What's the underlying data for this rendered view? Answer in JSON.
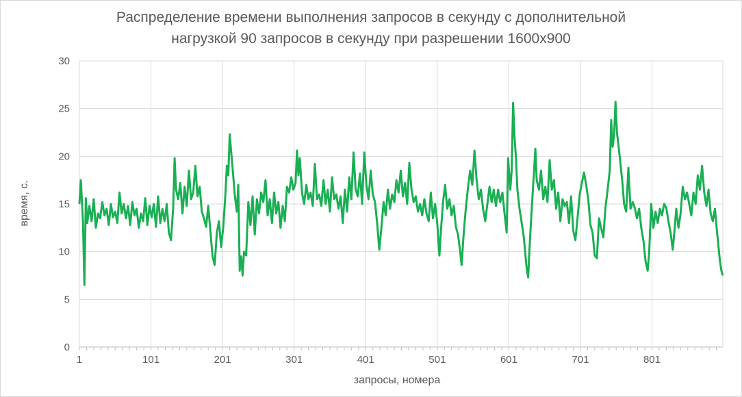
{
  "chart_data": {
    "type": "line",
    "title_lines": [
      "Распределение времени выполнения запросов в секунду с дополнительной",
      "нагрузкой 90 запросов в секунду при разрешении 1600x900"
    ],
    "xlabel": "запросы, номера",
    "ylabel": "время, с.",
    "ylim": [
      0,
      30
    ],
    "yticks": [
      0,
      5,
      10,
      15,
      20,
      25,
      30
    ],
    "xlim": [
      1,
      900
    ],
    "xticks": [
      1,
      101,
      201,
      301,
      401,
      501,
      601,
      701,
      801
    ],
    "grid": true,
    "legend": "none",
    "series": [
      {
        "color": "#1aaf54",
        "points": [
          [
            1,
            15.0
          ],
          [
            3,
            17.5
          ],
          [
            6,
            13.2
          ],
          [
            8,
            6.5
          ],
          [
            10,
            15.6
          ],
          [
            12,
            13.0
          ],
          [
            15,
            14.8
          ],
          [
            18,
            13.2
          ],
          [
            21,
            15.5
          ],
          [
            24,
            12.5
          ],
          [
            27,
            14.0
          ],
          [
            30,
            13.5
          ],
          [
            33,
            15.2
          ],
          [
            36,
            13.8
          ],
          [
            39,
            14.5
          ],
          [
            42,
            12.8
          ],
          [
            45,
            15.0
          ],
          [
            48,
            13.6
          ],
          [
            51,
            14.2
          ],
          [
            54,
            13.0
          ],
          [
            57,
            16.2
          ],
          [
            60,
            14.0
          ],
          [
            63,
            15.0
          ],
          [
            66,
            13.5
          ],
          [
            69,
            14.8
          ],
          [
            72,
            12.8
          ],
          [
            75,
            15.2
          ],
          [
            78,
            13.8
          ],
          [
            81,
            14.5
          ],
          [
            84,
            12.5
          ],
          [
            87,
            14.0
          ],
          [
            90,
            13.2
          ],
          [
            93,
            15.6
          ],
          [
            96,
            12.8
          ],
          [
            99,
            14.8
          ],
          [
            102,
            13.6
          ],
          [
            105,
            15.0
          ],
          [
            108,
            12.6
          ],
          [
            111,
            15.8
          ],
          [
            114,
            13.0
          ],
          [
            117,
            14.5
          ],
          [
            120,
            13.2
          ],
          [
            123,
            15.0
          ],
          [
            126,
            12.0
          ],
          [
            129,
            11.2
          ],
          [
            132,
            14.6
          ],
          [
            134,
            19.8
          ],
          [
            136,
            16.5
          ],
          [
            139,
            15.5
          ],
          [
            142,
            17.2
          ],
          [
            145,
            14.0
          ],
          [
            148,
            16.8
          ],
          [
            151,
            14.8
          ],
          [
            154,
            18.5
          ],
          [
            157,
            15.5
          ],
          [
            160,
            16.2
          ],
          [
            163,
            19.0
          ],
          [
            166,
            15.8
          ],
          [
            169,
            16.8
          ],
          [
            172,
            14.2
          ],
          [
            175,
            13.5
          ],
          [
            178,
            12.6
          ],
          [
            181,
            14.8
          ],
          [
            184,
            12.2
          ],
          [
            187,
            9.5
          ],
          [
            190,
            8.6
          ],
          [
            193,
            12.0
          ],
          [
            196,
            13.2
          ],
          [
            199,
            10.5
          ],
          [
            202,
            12.6
          ],
          [
            205,
            16.0
          ],
          [
            207,
            19.0
          ],
          [
            209,
            18.0
          ],
          [
            211,
            22.3
          ],
          [
            213,
            20.5
          ],
          [
            215,
            18.8
          ],
          [
            218,
            16.0
          ],
          [
            221,
            14.2
          ],
          [
            223,
            17.0
          ],
          [
            225,
            8.0
          ],
          [
            227,
            9.5
          ],
          [
            229,
            7.5
          ],
          [
            231,
            10.0
          ],
          [
            234,
            9.6
          ],
          [
            237,
            15.2
          ],
          [
            240,
            12.8
          ],
          [
            243,
            15.8
          ],
          [
            246,
            11.8
          ],
          [
            249,
            15.5
          ],
          [
            252,
            14.0
          ],
          [
            255,
            16.2
          ],
          [
            258,
            15.2
          ],
          [
            261,
            17.5
          ],
          [
            264,
            13.8
          ],
          [
            267,
            15.5
          ],
          [
            270,
            13.0
          ],
          [
            273,
            16.2
          ],
          [
            276,
            14.0
          ],
          [
            279,
            15.2
          ],
          [
            282,
            12.5
          ],
          [
            285,
            14.8
          ],
          [
            288,
            13.2
          ],
          [
            291,
            16.8
          ],
          [
            294,
            16.2
          ],
          [
            297,
            17.8
          ],
          [
            300,
            16.5
          ],
          [
            303,
            17.2
          ],
          [
            305,
            20.6
          ],
          [
            307,
            18.0
          ],
          [
            309,
            19.8
          ],
          [
            312,
            16.2
          ],
          [
            315,
            15.0
          ],
          [
            318,
            17.0
          ],
          [
            321,
            15.5
          ],
          [
            324,
            16.2
          ],
          [
            327,
            14.8
          ],
          [
            330,
            19.2
          ],
          [
            333,
            15.5
          ],
          [
            336,
            16.0
          ],
          [
            339,
            14.8
          ],
          [
            342,
            17.5
          ],
          [
            345,
            15.0
          ],
          [
            348,
            16.5
          ],
          [
            351,
            14.2
          ],
          [
            354,
            17.8
          ],
          [
            357,
            15.5
          ],
          [
            360,
            16.0
          ],
          [
            363,
            14.5
          ],
          [
            366,
            15.8
          ],
          [
            369,
            13.0
          ],
          [
            372,
            16.5
          ],
          [
            375,
            14.2
          ],
          [
            378,
            17.8
          ],
          [
            381,
            15.5
          ],
          [
            384,
            20.4
          ],
          [
            387,
            16.5
          ],
          [
            390,
            15.8
          ],
          [
            393,
            18.2
          ],
          [
            396,
            15.0
          ],
          [
            399,
            20.4
          ],
          [
            402,
            17.0
          ],
          [
            405,
            15.5
          ],
          [
            408,
            18.5
          ],
          [
            411,
            16.0
          ],
          [
            414,
            15.2
          ],
          [
            417,
            13.0
          ],
          [
            420,
            10.2
          ],
          [
            423,
            12.5
          ],
          [
            426,
            15.2
          ],
          [
            429,
            13.8
          ],
          [
            432,
            16.5
          ],
          [
            435,
            14.5
          ],
          [
            438,
            16.0
          ],
          [
            441,
            15.2
          ],
          [
            444,
            17.5
          ],
          [
            447,
            16.2
          ],
          [
            450,
            18.5
          ],
          [
            453,
            15.8
          ],
          [
            456,
            17.2
          ],
          [
            459,
            15.0
          ],
          [
            462,
            19.3
          ],
          [
            465,
            16.5
          ],
          [
            468,
            15.2
          ],
          [
            471,
            15.8
          ],
          [
            474,
            14.2
          ],
          [
            477,
            15.0
          ],
          [
            480,
            13.8
          ],
          [
            483,
            15.5
          ],
          [
            486,
            14.0
          ],
          [
            489,
            13.2
          ],
          [
            492,
            16.2
          ],
          [
            495,
            13.5
          ],
          [
            498,
            15.0
          ],
          [
            501,
            13.0
          ],
          [
            504,
            9.6
          ],
          [
            506,
            12.0
          ],
          [
            509,
            15.2
          ],
          [
            512,
            17.0
          ],
          [
            515,
            14.5
          ],
          [
            518,
            15.5
          ],
          [
            521,
            13.8
          ],
          [
            524,
            14.8
          ],
          [
            527,
            12.6
          ],
          [
            530,
            11.8
          ],
          [
            533,
            10.0
          ],
          [
            535,
            8.6
          ],
          [
            538,
            12.0
          ],
          [
            541,
            14.6
          ],
          [
            544,
            16.8
          ],
          [
            547,
            18.5
          ],
          [
            550,
            17.0
          ],
          [
            553,
            20.6
          ],
          [
            556,
            17.5
          ],
          [
            559,
            15.5
          ],
          [
            562,
            16.5
          ],
          [
            565,
            14.5
          ],
          [
            568,
            13.2
          ],
          [
            571,
            15.0
          ],
          [
            574,
            16.8
          ],
          [
            577,
            15.2
          ],
          [
            580,
            16.5
          ],
          [
            583,
            14.8
          ],
          [
            586,
            16.5
          ],
          [
            589,
            15.2
          ],
          [
            592,
            16.2
          ],
          [
            595,
            14.0
          ],
          [
            598,
            12.0
          ],
          [
            600,
            19.8
          ],
          [
            603,
            16.5
          ],
          [
            605,
            18.5
          ],
          [
            607,
            25.6
          ],
          [
            609,
            22.0
          ],
          [
            611,
            19.8
          ],
          [
            613,
            16.5
          ],
          [
            616,
            14.5
          ],
          [
            619,
            13.0
          ],
          [
            622,
            11.5
          ],
          [
            624,
            9.8
          ],
          [
            626,
            8.2
          ],
          [
            628,
            7.3
          ],
          [
            630,
            10.5
          ],
          [
            633,
            14.5
          ],
          [
            636,
            18.2
          ],
          [
            638,
            20.8
          ],
          [
            640,
            17.5
          ],
          [
            643,
            16.5
          ],
          [
            646,
            18.5
          ],
          [
            649,
            15.5
          ],
          [
            652,
            16.8
          ],
          [
            655,
            15.2
          ],
          [
            658,
            19.6
          ],
          [
            661,
            16.5
          ],
          [
            664,
            17.5
          ],
          [
            667,
            14.5
          ],
          [
            670,
            16.2
          ],
          [
            673,
            13.2
          ],
          [
            676,
            15.5
          ],
          [
            679,
            14.8
          ],
          [
            682,
            15.2
          ],
          [
            685,
            13.0
          ],
          [
            688,
            15.8
          ],
          [
            691,
            12.2
          ],
          [
            694,
            11.2
          ],
          [
            697,
            13.5
          ],
          [
            700,
            16.0
          ],
          [
            703,
            17.2
          ],
          [
            706,
            18.3
          ],
          [
            709,
            17.0
          ],
          [
            712,
            15.5
          ],
          [
            715,
            12.8
          ],
          [
            718,
            12.0
          ],
          [
            721,
            9.6
          ],
          [
            724,
            9.3
          ],
          [
            727,
            13.5
          ],
          [
            730,
            12.5
          ],
          [
            733,
            11.5
          ],
          [
            736,
            14.6
          ],
          [
            739,
            16.5
          ],
          [
            742,
            18.5
          ],
          [
            744,
            23.8
          ],
          [
            746,
            21.0
          ],
          [
            748,
            22.2
          ],
          [
            750,
            25.7
          ],
          [
            752,
            22.5
          ],
          [
            755,
            20.6
          ],
          [
            758,
            18.5
          ],
          [
            760,
            17.0
          ],
          [
            762,
            15.0
          ],
          [
            765,
            14.2
          ],
          [
            768,
            18.8
          ],
          [
            771,
            14.5
          ],
          [
            774,
            15.2
          ],
          [
            777,
            14.6
          ],
          [
            780,
            13.5
          ],
          [
            783,
            14.5
          ],
          [
            786,
            12.5
          ],
          [
            789,
            11.2
          ],
          [
            792,
            9.0
          ],
          [
            795,
            8.0
          ],
          [
            797,
            9.8
          ],
          [
            800,
            15.0
          ],
          [
            803,
            12.5
          ],
          [
            806,
            14.2
          ],
          [
            809,
            13.0
          ],
          [
            812,
            14.5
          ],
          [
            815,
            13.8
          ],
          [
            818,
            15.0
          ],
          [
            821,
            14.6
          ],
          [
            824,
            13.2
          ],
          [
            827,
            12.0
          ],
          [
            830,
            10.2
          ],
          [
            832,
            11.8
          ],
          [
            835,
            14.5
          ],
          [
            838,
            12.5
          ],
          [
            841,
            14.0
          ],
          [
            844,
            16.8
          ],
          [
            847,
            15.5
          ],
          [
            850,
            16.2
          ],
          [
            853,
            15.0
          ],
          [
            856,
            13.8
          ],
          [
            859,
            16.2
          ],
          [
            862,
            15.0
          ],
          [
            865,
            18.0
          ],
          [
            868,
            16.5
          ],
          [
            871,
            19.0
          ],
          [
            874,
            16.2
          ],
          [
            877,
            14.8
          ],
          [
            880,
            16.5
          ],
          [
            883,
            14.0
          ],
          [
            886,
            13.2
          ],
          [
            889,
            14.5
          ],
          [
            892,
            12.0
          ],
          [
            894,
            10.5
          ],
          [
            896,
            9.0
          ],
          [
            898,
            8.0
          ],
          [
            900,
            7.5
          ]
        ]
      }
    ]
  }
}
